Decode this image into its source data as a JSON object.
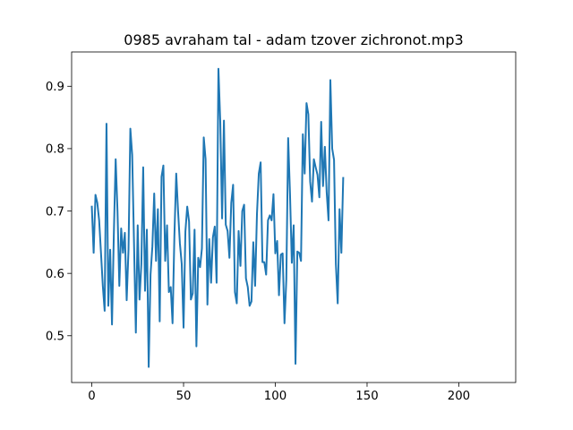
{
  "chart_data": {
    "type": "line",
    "title": "0985 avraham tal  - adam tzover zichronot.mp3",
    "xlabel": "",
    "ylabel": "",
    "xlim": [
      -11,
      231
    ],
    "ylim": [
      0.425,
      0.955
    ],
    "xticks": [
      0,
      50,
      100,
      150,
      200
    ],
    "yticks": [
      0.5,
      0.6,
      0.7,
      0.8,
      0.9
    ],
    "ytick_labels": [
      "0.5",
      "0.6",
      "0.7",
      "0.8",
      "0.9"
    ],
    "grid": false,
    "line_color": "#1f77b4",
    "series": [
      {
        "values": [
          0.707,
          0.633,
          0.726,
          0.713,
          0.685,
          0.633,
          0.58,
          0.54,
          0.84,
          0.548,
          0.638,
          0.518,
          0.662,
          0.783,
          0.7,
          0.58,
          0.672,
          0.633,
          0.665,
          0.557,
          0.638,
          0.832,
          0.79,
          0.648,
          0.505,
          0.677,
          0.558,
          0.615,
          0.77,
          0.572,
          0.67,
          0.45,
          0.598,
          0.643,
          0.728,
          0.62,
          0.703,
          0.523,
          0.755,
          0.773,
          0.62,
          0.677,
          0.57,
          0.578,
          0.52,
          0.66,
          0.76,
          0.7,
          0.648,
          0.615,
          0.513,
          0.667,
          0.707,
          0.683,
          0.558,
          0.568,
          0.67,
          0.483,
          0.625,
          0.61,
          0.64,
          0.818,
          0.783,
          0.55,
          0.655,
          0.585,
          0.658,
          0.675,
          0.585,
          0.928,
          0.843,
          0.688,
          0.845,
          0.678,
          0.668,
          0.625,
          0.713,
          0.742,
          0.57,
          0.552,
          0.668,
          0.612,
          0.7,
          0.71,
          0.592,
          0.578,
          0.548,
          0.555,
          0.65,
          0.58,
          0.695,
          0.76,
          0.778,
          0.618,
          0.618,
          0.598,
          0.685,
          0.693,
          0.685,
          0.727,
          0.632,
          0.652,
          0.565,
          0.63,
          0.632,
          0.52,
          0.59,
          0.817,
          0.728,
          0.617,
          0.677,
          0.455,
          0.635,
          0.633,
          0.62,
          0.823,
          0.76,
          0.873,
          0.855,
          0.747,
          0.715,
          0.783,
          0.77,
          0.758,
          0.722,
          0.843,
          0.74,
          0.803,
          0.73,
          0.685,
          0.91,
          0.8,
          0.782,
          0.615,
          0.552,
          0.703,
          0.633,
          0.753
        ]
      }
    ]
  }
}
